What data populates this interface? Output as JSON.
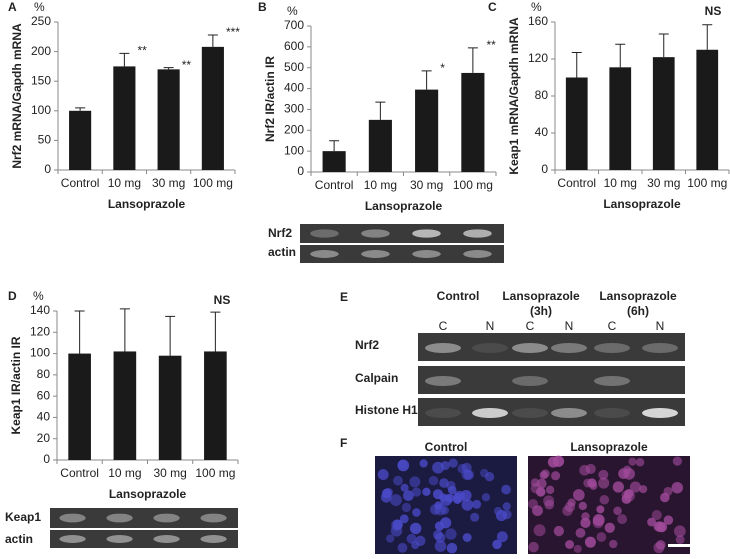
{
  "chart_data": [
    {
      "type": "bar",
      "panel": "A",
      "unit": "%",
      "y_label": "Nrf2 mRNA/Gapdh mRNA",
      "x_label": "Lansoprazole",
      "categories": [
        "Control",
        "10 mg",
        "30 mg",
        "100 mg"
      ],
      "values": [
        100,
        175,
        170,
        208
      ],
      "errors": [
        5,
        22,
        3,
        20
      ],
      "annotations": [
        null,
        "**",
        "**",
        "***"
      ],
      "color": "#1a1a1a",
      "ylim": [
        0,
        250
      ],
      "yticks": [
        0,
        50,
        100,
        150,
        200,
        250
      ]
    },
    {
      "type": "bar",
      "panel": "B",
      "unit": "%",
      "y_label": "Nrf2 IR/actin IR",
      "x_label": "Lansoprazole",
      "categories": [
        "Control",
        "10 mg",
        "30 mg",
        "100 mg"
      ],
      "values": [
        100,
        250,
        395,
        475
      ],
      "errors": [
        50,
        85,
        90,
        120
      ],
      "annotations": [
        null,
        null,
        "*",
        "**"
      ],
      "color": "#1a1a1a",
      "ylim": [
        0,
        700
      ],
      "yticks": [
        0,
        100,
        200,
        300,
        400,
        500,
        600,
        700
      ]
    },
    {
      "type": "bar",
      "panel": "C",
      "unit": "%",
      "note": "NS",
      "y_label": "Keap1 mRNA/Gapdh mRNA",
      "x_label": "Lansoprazole",
      "categories": [
        "Control",
        "10 mg",
        "30 mg",
        "100 mg"
      ],
      "values": [
        100,
        111,
        122,
        130
      ],
      "errors": [
        27,
        25,
        25,
        27
      ],
      "color": "#1a1a1a",
      "ylim": [
        0,
        160
      ],
      "yticks": [
        0,
        40,
        80,
        120,
        160
      ]
    },
    {
      "type": "bar",
      "panel": "D",
      "unit": "%",
      "note": "NS",
      "y_label": "Keap1 IR/actin IR",
      "x_label": "Lansoprazole",
      "categories": [
        "Control",
        "10 mg",
        "30 mg",
        "100 mg"
      ],
      "values": [
        100,
        102,
        98,
        102
      ],
      "errors": [
        40,
        40,
        37,
        37
      ],
      "color": "#1a1a1a",
      "ylim": [
        0,
        140
      ],
      "yticks": [
        0,
        20,
        40,
        60,
        80,
        100,
        120,
        140
      ]
    }
  ],
  "blots": {
    "B": [
      "Nrf2",
      "actin"
    ],
    "D": [
      "Keap1",
      "actin"
    ]
  },
  "panel_e": {
    "label": "E",
    "groups": [
      [
        "Control"
      ],
      [
        "Lansoprazole",
        "(3h)"
      ],
      [
        "Lansoprazole",
        "(6h)"
      ]
    ],
    "lanes": [
      "C",
      "N",
      "C",
      "N",
      "C",
      "N"
    ],
    "rows": [
      "Nrf2",
      "Calpain",
      "Histone H1"
    ]
  },
  "panel_f": {
    "label": "F",
    "images": [
      "Control",
      "Lansoprazole"
    ]
  }
}
